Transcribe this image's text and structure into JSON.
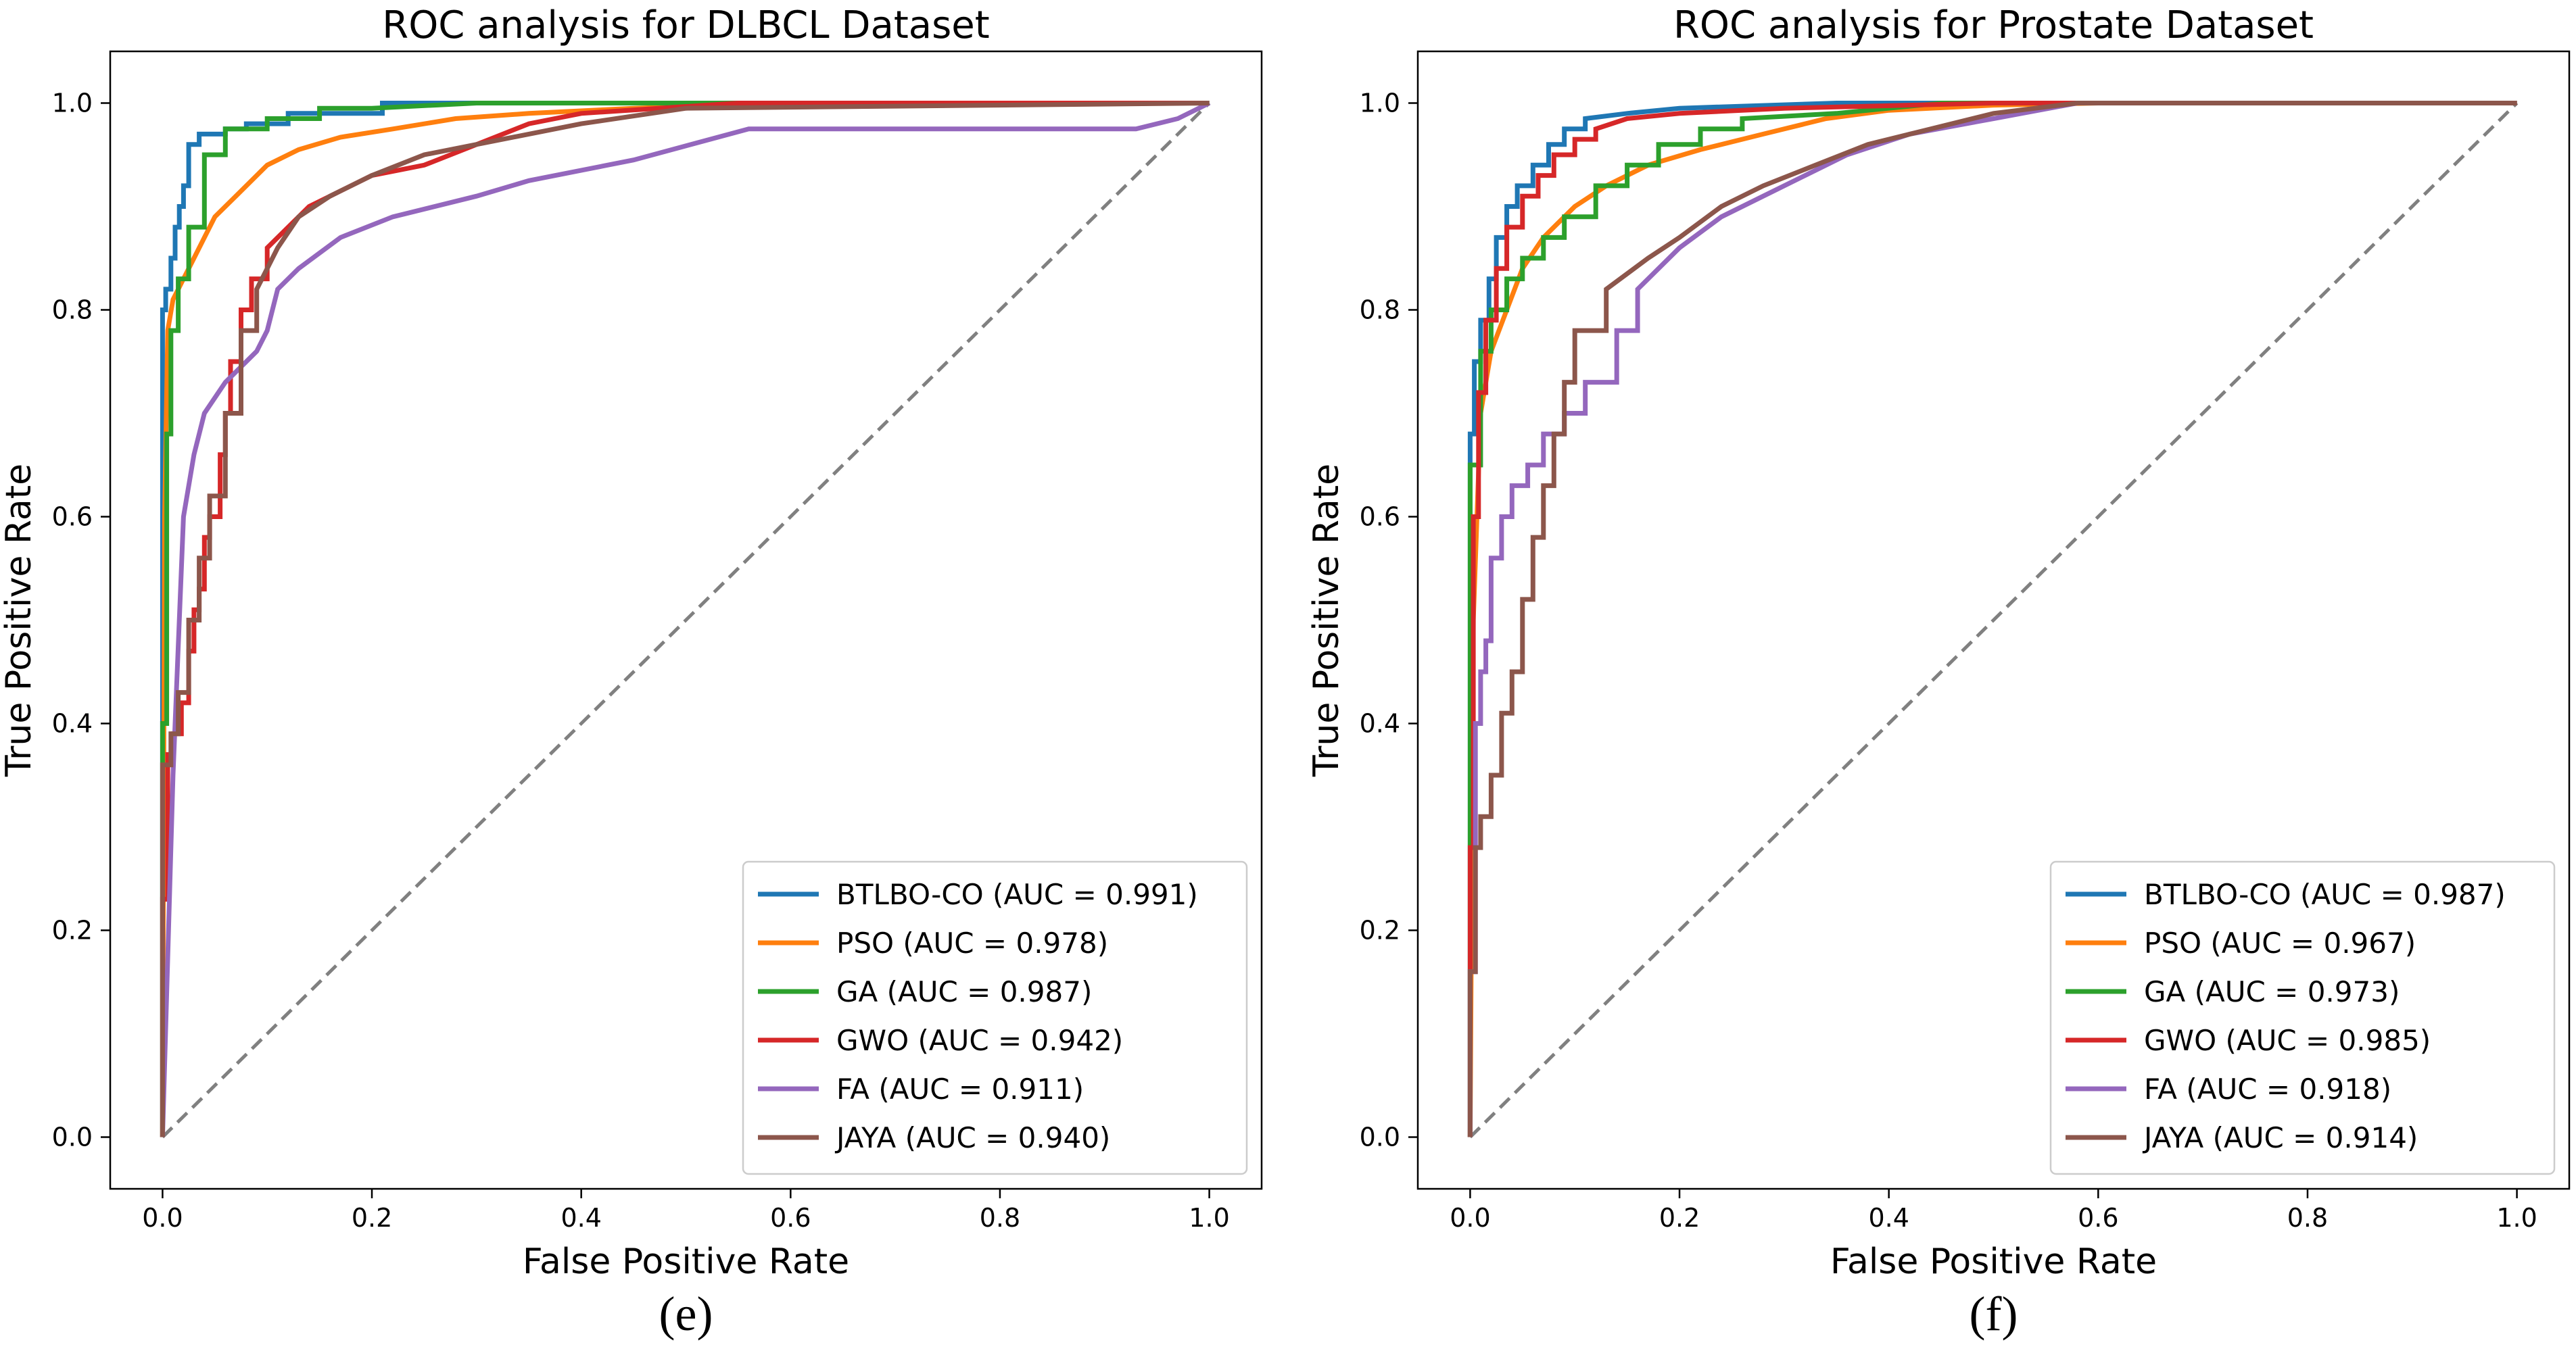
{
  "chart_data": [
    {
      "type": "line",
      "title": "ROC analysis for DLBCL Dataset",
      "xlabel": "False Positive Rate",
      "ylabel": "True Positive Rate",
      "caption": "(e)",
      "xlim": [
        -0.05,
        1.05
      ],
      "ylim": [
        -0.05,
        1.05
      ],
      "xticks": [
        0.0,
        0.2,
        0.4,
        0.6,
        0.8,
        1.0
      ],
      "yticks": [
        0.0,
        0.2,
        0.4,
        0.6,
        0.8,
        1.0
      ],
      "xtick_labels": [
        "0.0",
        "0.2",
        "0.4",
        "0.6",
        "0.8",
        "1.0"
      ],
      "ytick_labels": [
        "0.0",
        "0.2",
        "0.4",
        "0.6",
        "0.8",
        "1.0"
      ],
      "grid": false,
      "legend_position": "lower-right",
      "diagonal": {
        "x": [
          0,
          1
        ],
        "y": [
          0,
          1
        ],
        "color": "#808080",
        "style": "dashed"
      },
      "series": [
        {
          "name": "BTLBO-CO (AUC = 0.991)",
          "color": "#1f77b4",
          "x": [
            0,
            0,
            0.003,
            0.003,
            0.008,
            0.008,
            0.012,
            0.012,
            0.016,
            0.016,
            0.02,
            0.02,
            0.025,
            0.025,
            0.035,
            0.035,
            0.06,
            0.06,
            0.08,
            0.08,
            0.12,
            0.12,
            0.21,
            0.21,
            0.3,
            0.5,
            1.0
          ],
          "y": [
            0,
            0.8,
            0.8,
            0.82,
            0.82,
            0.85,
            0.85,
            0.88,
            0.88,
            0.9,
            0.9,
            0.92,
            0.92,
            0.96,
            0.96,
            0.97,
            0.97,
            0.975,
            0.975,
            0.98,
            0.98,
            0.99,
            0.99,
            1.0,
            1.0,
            1.0,
            1.0
          ]
        },
        {
          "name": "PSO (AUC = 0.978)",
          "color": "#ff7f0e",
          "x": [
            0,
            0.002,
            0.005,
            0.01,
            0.02,
            0.03,
            0.04,
            0.05,
            0.07,
            0.1,
            0.13,
            0.17,
            0.22,
            0.28,
            0.35,
            0.45,
            0.6,
            1.0
          ],
          "y": [
            0,
            0.6,
            0.78,
            0.81,
            0.83,
            0.85,
            0.87,
            0.89,
            0.91,
            0.94,
            0.955,
            0.967,
            0.975,
            0.985,
            0.99,
            0.995,
            1.0,
            1.0
          ]
        },
        {
          "name": "GA (AUC = 0.987)",
          "color": "#2ca02c",
          "x": [
            0,
            0,
            0.004,
            0.004,
            0.008,
            0.008,
            0.015,
            0.015,
            0.025,
            0.025,
            0.04,
            0.04,
            0.06,
            0.06,
            0.1,
            0.1,
            0.15,
            0.15,
            0.2,
            0.3,
            0.5,
            1.0
          ],
          "y": [
            0,
            0.4,
            0.4,
            0.68,
            0.68,
            0.78,
            0.78,
            0.83,
            0.83,
            0.88,
            0.88,
            0.95,
            0.95,
            0.975,
            0.975,
            0.985,
            0.985,
            0.995,
            0.995,
            1.0,
            1.0,
            1.0
          ]
        },
        {
          "name": "GWO (AUC = 0.942)",
          "color": "#d62728",
          "x": [
            0,
            0,
            0.005,
            0.005,
            0.01,
            0.01,
            0.018,
            0.018,
            0.025,
            0.025,
            0.03,
            0.03,
            0.035,
            0.035,
            0.04,
            0.04,
            0.045,
            0.045,
            0.055,
            0.055,
            0.06,
            0.06,
            0.065,
            0.065,
            0.075,
            0.075,
            0.085,
            0.085,
            0.1,
            0.1,
            0.12,
            0.14,
            0.16,
            0.2,
            0.25,
            0.3,
            0.35,
            0.4,
            0.55,
            1.0
          ],
          "y": [
            0,
            0.23,
            0.23,
            0.37,
            0.37,
            0.39,
            0.39,
            0.42,
            0.42,
            0.47,
            0.47,
            0.51,
            0.51,
            0.53,
            0.53,
            0.58,
            0.58,
            0.6,
            0.6,
            0.66,
            0.66,
            0.7,
            0.7,
            0.75,
            0.75,
            0.8,
            0.8,
            0.83,
            0.83,
            0.86,
            0.88,
            0.9,
            0.91,
            0.93,
            0.94,
            0.96,
            0.98,
            0.99,
            1.0,
            1.0
          ]
        },
        {
          "name": "FA (AUC = 0.911)",
          "color": "#9467bd",
          "x": [
            0,
            0.01,
            0.02,
            0.03,
            0.04,
            0.06,
            0.08,
            0.09,
            0.1,
            0.11,
            0.13,
            0.17,
            0.22,
            0.3,
            0.35,
            0.45,
            0.56,
            0.93,
            0.97,
            1.0
          ],
          "y": [
            0,
            0.35,
            0.6,
            0.66,
            0.7,
            0.73,
            0.75,
            0.76,
            0.78,
            0.82,
            0.84,
            0.87,
            0.89,
            0.91,
            0.925,
            0.945,
            0.975,
            0.975,
            0.985,
            1.0
          ]
        },
        {
          "name": "JAYA (AUC = 0.940)",
          "color": "#8c564b",
          "x": [
            0,
            0,
            0.008,
            0.008,
            0.015,
            0.015,
            0.025,
            0.025,
            0.035,
            0.035,
            0.045,
            0.045,
            0.06,
            0.06,
            0.075,
            0.075,
            0.09,
            0.09,
            0.11,
            0.13,
            0.16,
            0.2,
            0.25,
            0.3,
            0.4,
            0.5,
            1.0
          ],
          "y": [
            0,
            0.36,
            0.36,
            0.39,
            0.39,
            0.43,
            0.43,
            0.5,
            0.5,
            0.56,
            0.56,
            0.62,
            0.62,
            0.7,
            0.7,
            0.78,
            0.78,
            0.82,
            0.86,
            0.89,
            0.91,
            0.93,
            0.95,
            0.96,
            0.98,
            0.995,
            1.0
          ]
        }
      ]
    },
    {
      "type": "line",
      "title": "ROC analysis for Prostate Dataset",
      "xlabel": "False Positive Rate",
      "ylabel": "True Positive Rate",
      "caption": "(f)",
      "xlim": [
        -0.05,
        1.05
      ],
      "ylim": [
        -0.05,
        1.05
      ],
      "xticks": [
        0.0,
        0.2,
        0.4,
        0.6,
        0.8,
        1.0
      ],
      "yticks": [
        0.0,
        0.2,
        0.4,
        0.6,
        0.8,
        1.0
      ],
      "xtick_labels": [
        "0.0",
        "0.2",
        "0.4",
        "0.6",
        "0.8",
        "1.0"
      ],
      "ytick_labels": [
        "0.0",
        "0.2",
        "0.4",
        "0.6",
        "0.8",
        "1.0"
      ],
      "grid": false,
      "legend_position": "lower-right",
      "diagonal": {
        "x": [
          0,
          1
        ],
        "y": [
          0,
          1
        ],
        "color": "#808080",
        "style": "dashed"
      },
      "series": [
        {
          "name": "BTLBO-CO (AUC = 0.987)",
          "color": "#1f77b4",
          "x": [
            0,
            0,
            0.004,
            0.004,
            0.01,
            0.01,
            0.018,
            0.018,
            0.025,
            0.025,
            0.035,
            0.035,
            0.045,
            0.045,
            0.06,
            0.06,
            0.075,
            0.075,
            0.09,
            0.09,
            0.11,
            0.11,
            0.15,
            0.2,
            0.35,
            0.5,
            1.0
          ],
          "y": [
            0,
            0.68,
            0.68,
            0.75,
            0.75,
            0.79,
            0.79,
            0.83,
            0.83,
            0.87,
            0.87,
            0.9,
            0.9,
            0.92,
            0.92,
            0.94,
            0.94,
            0.96,
            0.96,
            0.975,
            0.975,
            0.985,
            0.99,
            0.995,
            1.0,
            1.0,
            1.0
          ]
        },
        {
          "name": "PSO (AUC = 0.967)",
          "color": "#ff7f0e",
          "x": [
            0,
            0.003,
            0.01,
            0.02,
            0.035,
            0.05,
            0.07,
            0.1,
            0.13,
            0.17,
            0.22,
            0.28,
            0.34,
            0.4,
            0.5,
            0.6,
            1.0
          ],
          "y": [
            0,
            0.5,
            0.7,
            0.76,
            0.8,
            0.84,
            0.87,
            0.9,
            0.92,
            0.94,
            0.955,
            0.97,
            0.985,
            0.993,
            0.998,
            1.0,
            1.0
          ]
        },
        {
          "name": "GA (AUC = 0.973)",
          "color": "#2ca02c",
          "x": [
            0,
            0,
            0.01,
            0.01,
            0.02,
            0.02,
            0.035,
            0.035,
            0.05,
            0.05,
            0.07,
            0.07,
            0.09,
            0.09,
            0.12,
            0.12,
            0.15,
            0.15,
            0.18,
            0.18,
            0.22,
            0.22,
            0.26,
            0.26,
            0.35,
            0.45,
            1.0
          ],
          "y": [
            0,
            0.65,
            0.65,
            0.76,
            0.76,
            0.8,
            0.8,
            0.83,
            0.83,
            0.85,
            0.85,
            0.87,
            0.87,
            0.89,
            0.89,
            0.92,
            0.92,
            0.94,
            0.94,
            0.96,
            0.96,
            0.975,
            0.975,
            0.985,
            0.99,
            1.0,
            1.0
          ]
        },
        {
          "name": "GWO (AUC = 0.985)",
          "color": "#d62728",
          "x": [
            0,
            0,
            0.003,
            0.003,
            0.008,
            0.008,
            0.015,
            0.015,
            0.025,
            0.025,
            0.035,
            0.035,
            0.05,
            0.05,
            0.065,
            0.065,
            0.08,
            0.08,
            0.1,
            0.1,
            0.12,
            0.12,
            0.15,
            0.2,
            0.3,
            0.5,
            1.0
          ],
          "y": [
            0,
            0.28,
            0.28,
            0.6,
            0.6,
            0.72,
            0.72,
            0.79,
            0.79,
            0.84,
            0.84,
            0.88,
            0.88,
            0.91,
            0.91,
            0.93,
            0.93,
            0.95,
            0.95,
            0.965,
            0.965,
            0.975,
            0.985,
            0.99,
            0.995,
            1.0,
            1.0
          ]
        },
        {
          "name": "FA (AUC = 0.918)",
          "color": "#9467bd",
          "x": [
            0,
            0,
            0.005,
            0.005,
            0.01,
            0.01,
            0.015,
            0.015,
            0.02,
            0.02,
            0.03,
            0.03,
            0.04,
            0.04,
            0.055,
            0.055,
            0.07,
            0.07,
            0.09,
            0.09,
            0.11,
            0.11,
            0.14,
            0.14,
            0.16,
            0.16,
            0.2,
            0.24,
            0.28,
            0.32,
            0.36,
            0.42,
            0.5,
            0.58,
            1.0
          ],
          "y": [
            0,
            0.16,
            0.16,
            0.4,
            0.4,
            0.45,
            0.45,
            0.48,
            0.48,
            0.56,
            0.56,
            0.6,
            0.6,
            0.63,
            0.63,
            0.65,
            0.65,
            0.68,
            0.68,
            0.7,
            0.7,
            0.73,
            0.73,
            0.78,
            0.78,
            0.82,
            0.86,
            0.89,
            0.91,
            0.93,
            0.95,
            0.97,
            0.985,
            1.0,
            1.0
          ]
        },
        {
          "name": "JAYA (AUC = 0.914)",
          "color": "#8c564b",
          "x": [
            0,
            0,
            0.005,
            0.005,
            0.01,
            0.01,
            0.02,
            0.02,
            0.03,
            0.03,
            0.04,
            0.04,
            0.05,
            0.05,
            0.06,
            0.06,
            0.07,
            0.07,
            0.08,
            0.08,
            0.09,
            0.09,
            0.1,
            0.1,
            0.13,
            0.13,
            0.17,
            0.2,
            0.24,
            0.28,
            0.33,
            0.38,
            0.44,
            0.5,
            0.58,
            1.0
          ],
          "y": [
            0,
            0.16,
            0.16,
            0.28,
            0.28,
            0.31,
            0.31,
            0.35,
            0.35,
            0.41,
            0.41,
            0.45,
            0.45,
            0.52,
            0.52,
            0.58,
            0.58,
            0.63,
            0.63,
            0.68,
            0.68,
            0.73,
            0.73,
            0.78,
            0.78,
            0.82,
            0.85,
            0.87,
            0.9,
            0.92,
            0.94,
            0.96,
            0.975,
            0.99,
            1.0,
            1.0
          ]
        }
      ]
    }
  ]
}
